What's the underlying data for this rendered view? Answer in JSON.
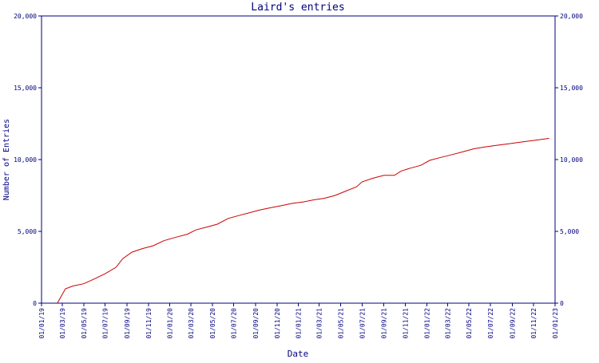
{
  "chart_data": {
    "type": "line",
    "title": "Laird's entries",
    "xlabel": "Date",
    "ylabel": "Number of Entries",
    "ylim": [
      0,
      20000
    ],
    "xlim": [
      "2019-01-01",
      "2023-01-01"
    ],
    "y_ticks": [
      0,
      5000,
      10000,
      15000,
      20000
    ],
    "y_tick_labels": [
      "0",
      "5,000",
      "10,000",
      "15,000",
      "20,000"
    ],
    "x_ticks": [
      "2019-01-01",
      "2019-03-01",
      "2019-05-01",
      "2019-07-01",
      "2019-09-01",
      "2019-11-01",
      "2020-01-01",
      "2020-03-01",
      "2020-05-01",
      "2020-07-01",
      "2020-09-01",
      "2020-11-01",
      "2021-01-01",
      "2021-03-01",
      "2021-05-01",
      "2021-07-01",
      "2021-09-01",
      "2021-11-01",
      "2022-01-01",
      "2022-03-01",
      "2022-05-01",
      "2022-07-01",
      "2022-09-01",
      "2022-11-01",
      "2023-01-01"
    ],
    "x_tick_labels": [
      "01/01/19",
      "01/03/19",
      "01/05/19",
      "01/07/19",
      "01/09/19",
      "01/11/19",
      "01/01/20",
      "01/03/20",
      "01/05/20",
      "01/07/20",
      "01/09/20",
      "01/11/20",
      "01/01/21",
      "01/03/21",
      "01/05/21",
      "01/07/21",
      "01/09/21",
      "01/11/21",
      "01/01/22",
      "01/03/22",
      "01/05/22",
      "01/07/22",
      "01/09/22",
      "01/11/22",
      "01/01/23"
    ],
    "grid": false,
    "series": [
      {
        "color": "#cc0000",
        "points": [
          [
            "2019-02-15",
            0
          ],
          [
            "2019-03-10",
            1000
          ],
          [
            "2019-04-01",
            1200
          ],
          [
            "2019-05-01",
            1350
          ],
          [
            "2019-06-01",
            1700
          ],
          [
            "2019-07-01",
            2050
          ],
          [
            "2019-08-01",
            2500
          ],
          [
            "2019-08-20",
            3100
          ],
          [
            "2019-09-15",
            3550
          ],
          [
            "2019-10-15",
            3800
          ],
          [
            "2019-11-15",
            4000
          ],
          [
            "2019-12-15",
            4350
          ],
          [
            "2020-01-20",
            4600
          ],
          [
            "2020-02-20",
            4800
          ],
          [
            "2020-03-15",
            5100
          ],
          [
            "2020-04-15",
            5300
          ],
          [
            "2020-05-15",
            5500
          ],
          [
            "2020-06-15",
            5900
          ],
          [
            "2020-07-15",
            6100
          ],
          [
            "2020-08-15",
            6300
          ],
          [
            "2020-09-15",
            6500
          ],
          [
            "2020-10-15",
            6650
          ],
          [
            "2020-11-15",
            6800
          ],
          [
            "2020-12-15",
            6950
          ],
          [
            "2021-01-15",
            7050
          ],
          [
            "2021-02-15",
            7200
          ],
          [
            "2021-03-15",
            7300
          ],
          [
            "2021-04-15",
            7500
          ],
          [
            "2021-05-15",
            7800
          ],
          [
            "2021-06-15",
            8100
          ],
          [
            "2021-07-01",
            8450
          ],
          [
            "2021-08-01",
            8700
          ],
          [
            "2021-09-01",
            8900
          ],
          [
            "2021-10-01",
            8900
          ],
          [
            "2021-10-20",
            9200
          ],
          [
            "2021-11-15",
            9400
          ],
          [
            "2021-12-15",
            9600
          ],
          [
            "2022-01-10",
            9950
          ],
          [
            "2022-02-10",
            10150
          ],
          [
            "2022-03-15",
            10350
          ],
          [
            "2022-04-15",
            10550
          ],
          [
            "2022-05-15",
            10750
          ],
          [
            "2022-06-15",
            10880
          ],
          [
            "2022-07-15",
            10980
          ],
          [
            "2022-08-15",
            11080
          ],
          [
            "2022-09-15",
            11180
          ],
          [
            "2022-10-15",
            11280
          ],
          [
            "2022-11-15",
            11380
          ],
          [
            "2022-12-15",
            11480
          ]
        ]
      }
    ],
    "colors": {
      "axis": "#000080",
      "text": "#000080",
      "line": "#cc0000",
      "background": "#ffffff"
    }
  }
}
